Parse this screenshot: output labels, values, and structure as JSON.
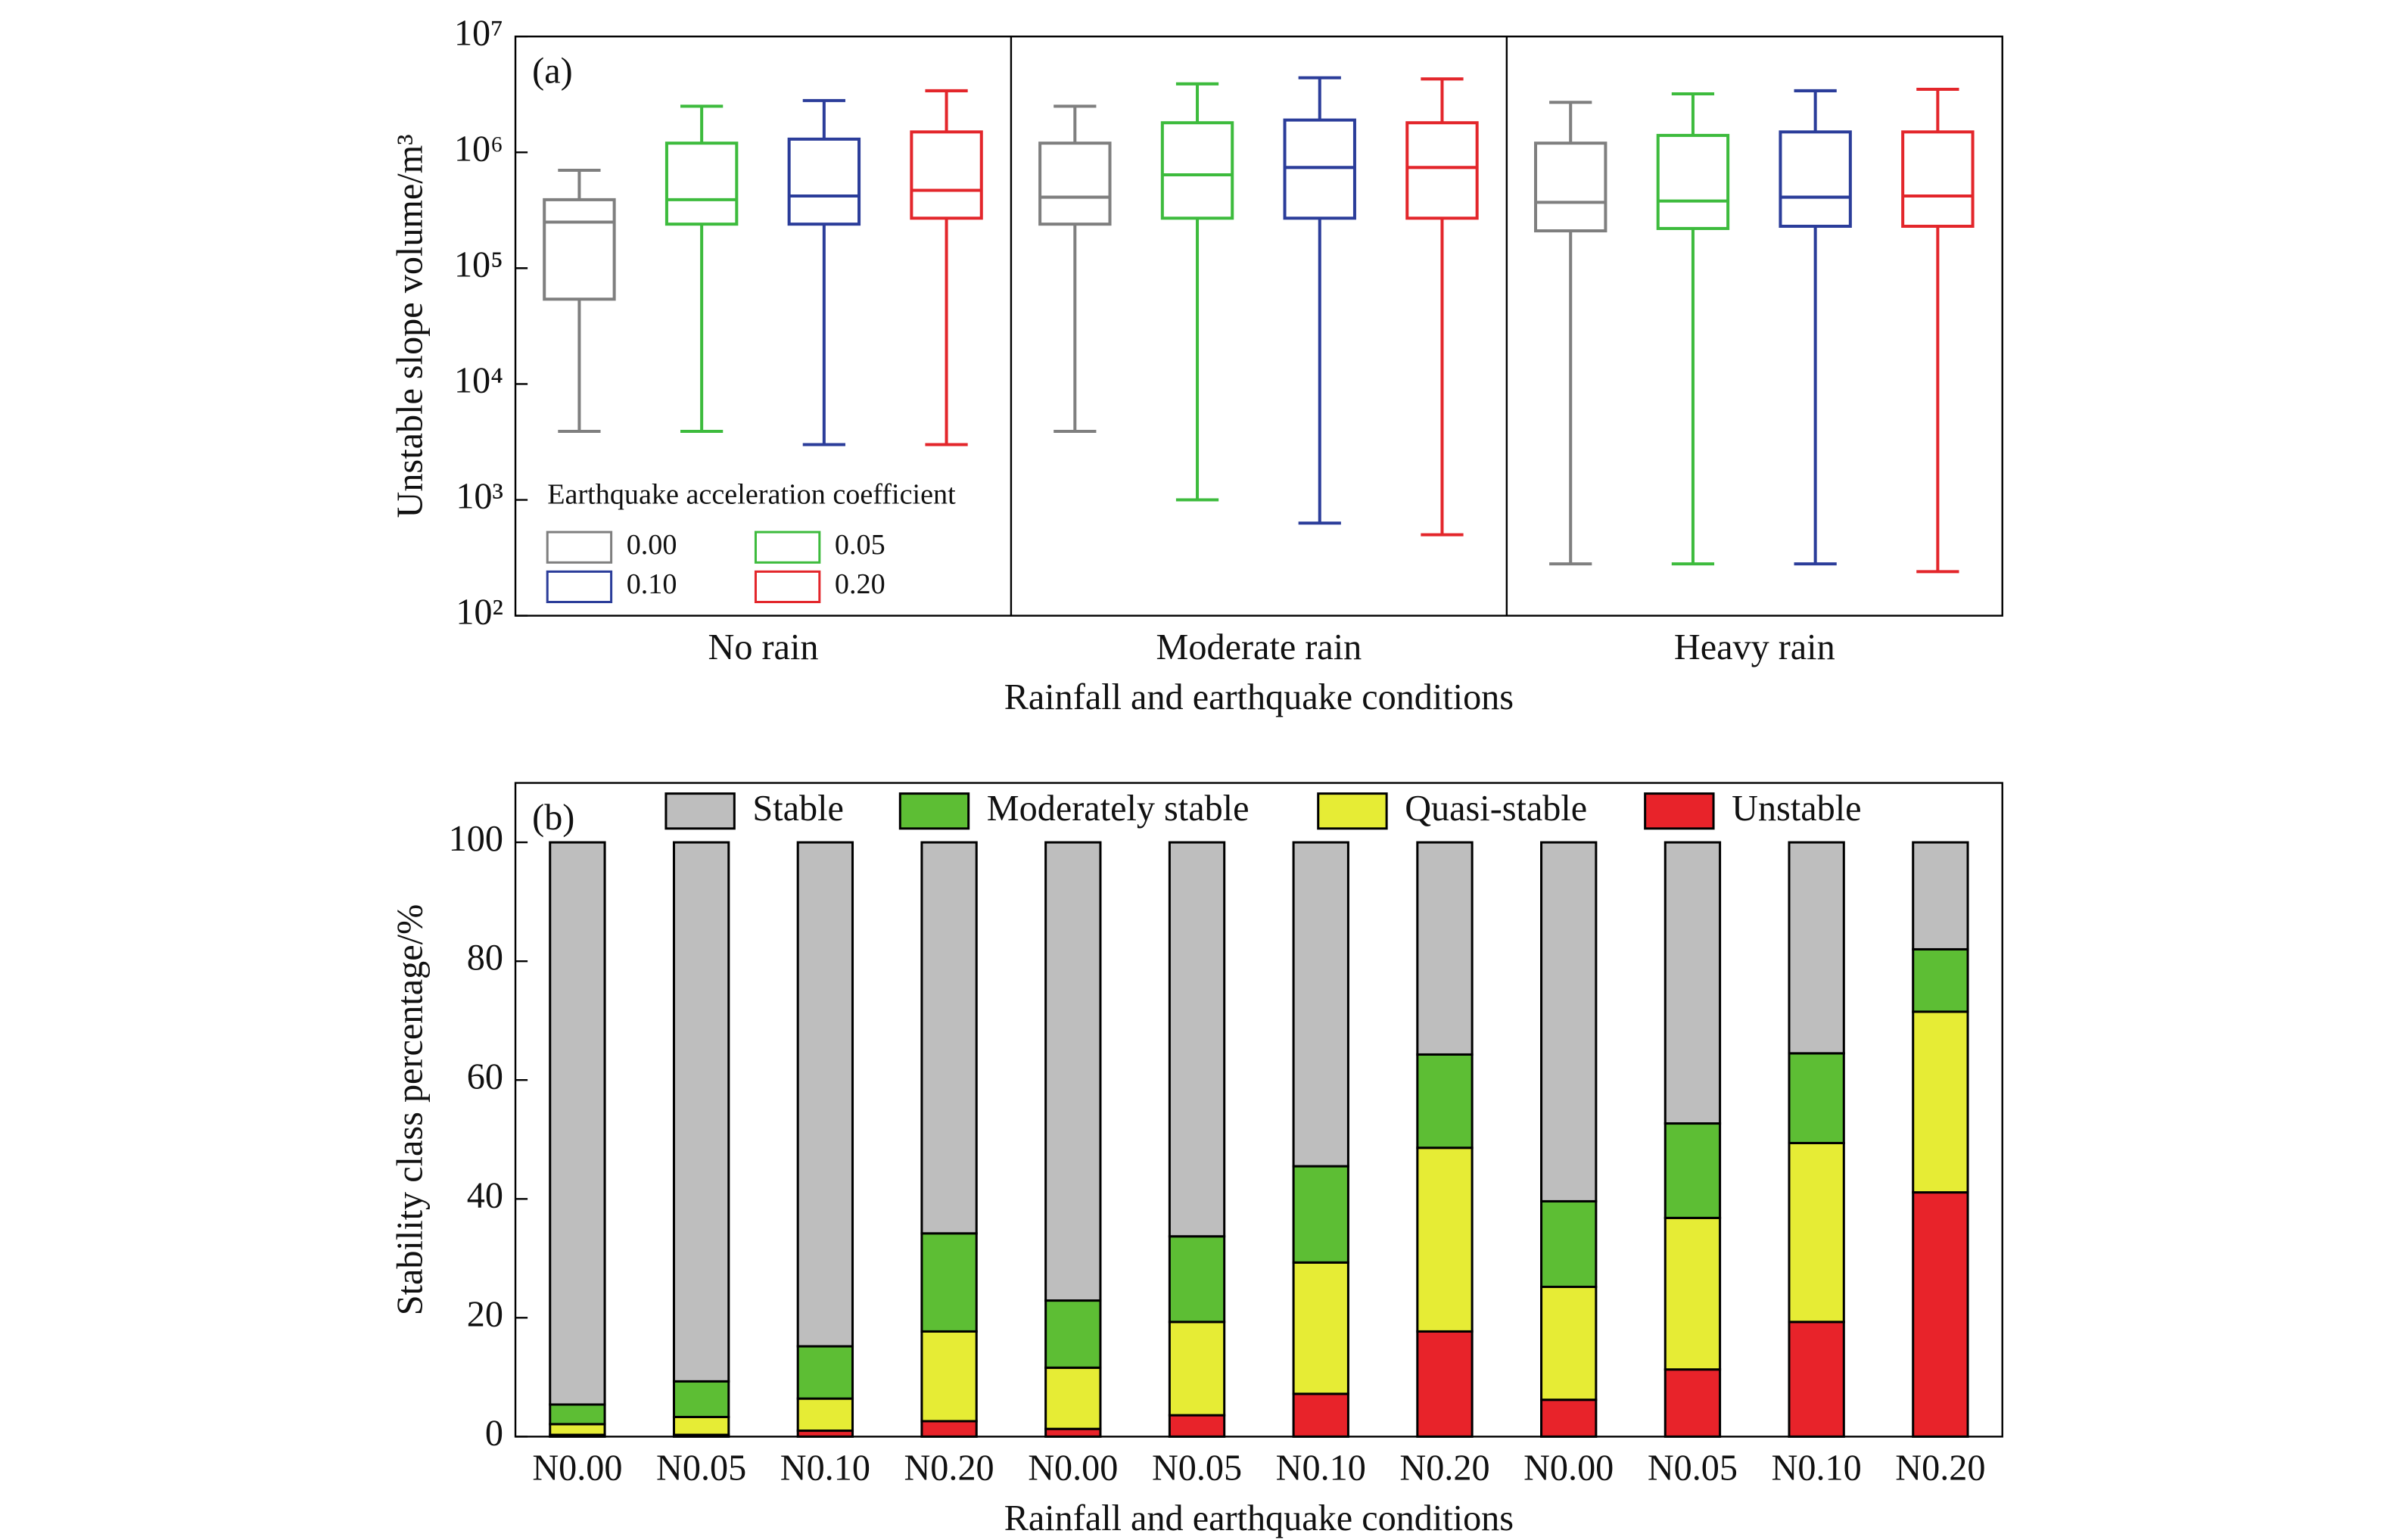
{
  "chart_data": [
    {
      "type": "box",
      "panel_label": "(a)",
      "x_label": "Rainfall and earthquake conditions",
      "y_label": "Unstable slope volume/m³",
      "categories": [
        "No rain",
        "Moderate rain",
        "Heavy rain"
      ],
      "legend_title": "Earthquake acceleration coefficient",
      "log_y": true,
      "ylim": [
        100,
        10000000
      ],
      "yticks": [
        {
          "value": 100,
          "label": "10²"
        },
        {
          "value": 1000,
          "label": "10³"
        },
        {
          "value": 10000,
          "label": "10⁴"
        },
        {
          "value": 100000,
          "label": "10⁵"
        },
        {
          "value": 1000000,
          "label": "10⁶"
        },
        {
          "value": 10000000,
          "label": "10⁷"
        }
      ],
      "series": [
        {
          "name": "0.00",
          "color": "#7f7f7f",
          "boxes": [
            {
              "whislo": 3900,
              "q1": 54000,
              "med": 250000,
              "q3": 390000,
              "whishi": 700000
            },
            {
              "whislo": 3900,
              "q1": 240000,
              "med": 410000,
              "q3": 1200000,
              "whishi": 2500000
            },
            {
              "whislo": 280,
              "q1": 210000,
              "med": 370000,
              "q3": 1200000,
              "whishi": 2700000
            }
          ]
        },
        {
          "name": "0.05",
          "color": "#3dbb3d",
          "boxes": [
            {
              "whislo": 3900,
              "q1": 240000,
              "med": 390000,
              "q3": 1200000,
              "whishi": 2500000
            },
            {
              "whislo": 1000,
              "q1": 270000,
              "med": 640000,
              "q3": 1800000,
              "whishi": 3900000
            },
            {
              "whislo": 280,
              "q1": 220000,
              "med": 380000,
              "q3": 1400000,
              "whishi": 3200000
            }
          ]
        },
        {
          "name": "0.10",
          "color": "#2b3d9a",
          "boxes": [
            {
              "whislo": 3000,
              "q1": 240000,
              "med": 420000,
              "q3": 1300000,
              "whishi": 2800000
            },
            {
              "whislo": 630,
              "q1": 270000,
              "med": 740000,
              "q3": 1900000,
              "whishi": 4400000
            },
            {
              "whislo": 280,
              "q1": 230000,
              "med": 410000,
              "q3": 1500000,
              "whishi": 3400000
            }
          ]
        },
        {
          "name": "0.20",
          "color": "#e3262b",
          "boxes": [
            {
              "whislo": 3000,
              "q1": 270000,
              "med": 470000,
              "q3": 1500000,
              "whishi": 3400000
            },
            {
              "whislo": 500,
              "q1": 270000,
              "med": 740000,
              "q3": 1800000,
              "whishi": 4300000
            },
            {
              "whislo": 240,
              "q1": 230000,
              "med": 420000,
              "q3": 1500000,
              "whishi": 3500000
            }
          ]
        }
      ]
    },
    {
      "type": "stacked_bar",
      "panel_label": "(b)",
      "x_label": "Rainfall and earthquake conditions",
      "y_label": "Stability class percentage/%",
      "categories": [
        "N0.00",
        "N0.05",
        "N0.10",
        "N0.20",
        "N0.00",
        "N0.05",
        "N0.10",
        "N0.20",
        "N0.00",
        "N0.05",
        "N0.10",
        "N0.20"
      ],
      "ylim": [
        0,
        110
      ],
      "yticks": [
        0,
        20,
        40,
        60,
        80,
        100
      ],
      "series": [
        {
          "name": "Stable",
          "color": "#bebebe",
          "values": [
            94.6,
            90.7,
            84.8,
            65.8,
            77.1,
            66.3,
            54.5,
            35.7,
            60.4,
            47.3,
            35.5,
            18.0
          ]
        },
        {
          "name": "Moderately stable",
          "color": "#5dbe34",
          "values": [
            3.3,
            6.0,
            8.8,
            16.5,
            11.3,
            14.4,
            16.2,
            15.7,
            14.4,
            15.9,
            15.1,
            10.5
          ]
        },
        {
          "name": "Quasi-stable",
          "color": "#e6ec35",
          "values": [
            1.8,
            3.0,
            5.4,
            15.1,
            10.3,
            15.7,
            22.1,
            30.9,
            19.0,
            25.5,
            30.1,
            30.4
          ]
        },
        {
          "name": "Unstable",
          "color": "#e8232a",
          "values": [
            0.3,
            0.3,
            1.0,
            2.6,
            1.3,
            3.6,
            7.2,
            17.7,
            6.2,
            11.3,
            19.3,
            41.1
          ]
        }
      ]
    }
  ]
}
